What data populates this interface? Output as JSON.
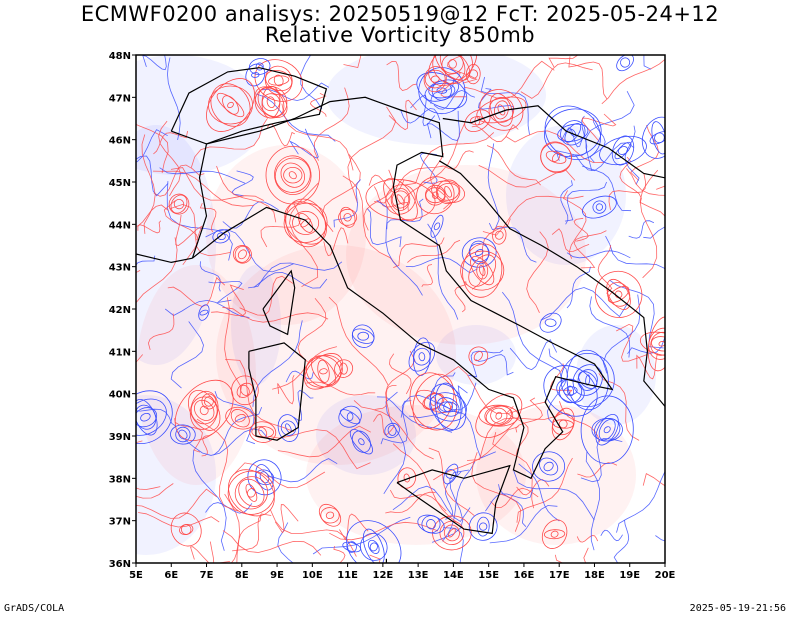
{
  "title_line1": "ECMWF0200 analisys: 20250519@12 FcT: 2025-05-24+12",
  "title_line2": "Relative Vorticity 850mb",
  "footer_left": "GrADS/COLA",
  "footer_right": "2025-05-19-21:56",
  "map": {
    "lon_range": [
      5,
      20
    ],
    "lat_range": [
      36,
      48
    ],
    "lon_ticks": [
      "5E",
      "6E",
      "7E",
      "8E",
      "9E",
      "10E",
      "11E",
      "12E",
      "13E",
      "14E",
      "15E",
      "16E",
      "17E",
      "18E",
      "19E",
      "20E"
    ],
    "lat_ticks": [
      "36N",
      "37N",
      "38N",
      "39N",
      "40N",
      "41N",
      "42N",
      "43N",
      "44N",
      "45N",
      "46N",
      "47N",
      "48N"
    ],
    "colors": {
      "positive_vorticity": "#3a4dff",
      "negative_vorticity": "#ff4a4a",
      "coastline": "#000000"
    }
  }
}
